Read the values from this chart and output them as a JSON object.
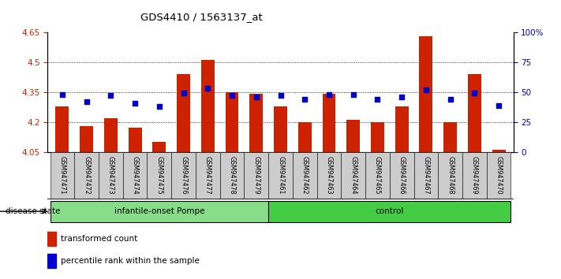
{
  "title": "GDS4410 / 1563137_at",
  "samples": [
    "GSM947471",
    "GSM947472",
    "GSM947473",
    "GSM947474",
    "GSM947475",
    "GSM947476",
    "GSM947477",
    "GSM947478",
    "GSM947479",
    "GSM947461",
    "GSM947462",
    "GSM947463",
    "GSM947464",
    "GSM947465",
    "GSM947466",
    "GSM947467",
    "GSM947468",
    "GSM947469",
    "GSM947470"
  ],
  "bar_values": [
    4.28,
    4.18,
    4.22,
    4.17,
    4.1,
    4.44,
    4.51,
    4.35,
    4.34,
    4.28,
    4.2,
    4.34,
    4.21,
    4.2,
    4.28,
    4.63,
    4.2,
    4.44,
    4.06
  ],
  "percentile_values": [
    48,
    42,
    47,
    41,
    38,
    49,
    53,
    47,
    46,
    47,
    44,
    48,
    48,
    44,
    46,
    52,
    44,
    49,
    39
  ],
  "ylim_left": [
    4.05,
    4.65
  ],
  "ylim_right": [
    0,
    100
  ],
  "yticks_left": [
    4.05,
    4.2,
    4.35,
    4.5,
    4.65
  ],
  "yticks_right": [
    0,
    25,
    50,
    75,
    100
  ],
  "ytick_labels_right": [
    "0",
    "25",
    "50",
    "75",
    "100%"
  ],
  "bar_color": "#cc2200",
  "marker_color": "#0000cc",
  "bar_bottom": 4.05,
  "pompe_color": "#88dd88",
  "control_color": "#44cc44",
  "sample_box_color": "#cccccc",
  "disease_state_label": "disease state",
  "legend_bar_label": "transformed count",
  "legend_marker_label": "percentile rank within the sample",
  "n_pompe": 9,
  "n_control": 10
}
